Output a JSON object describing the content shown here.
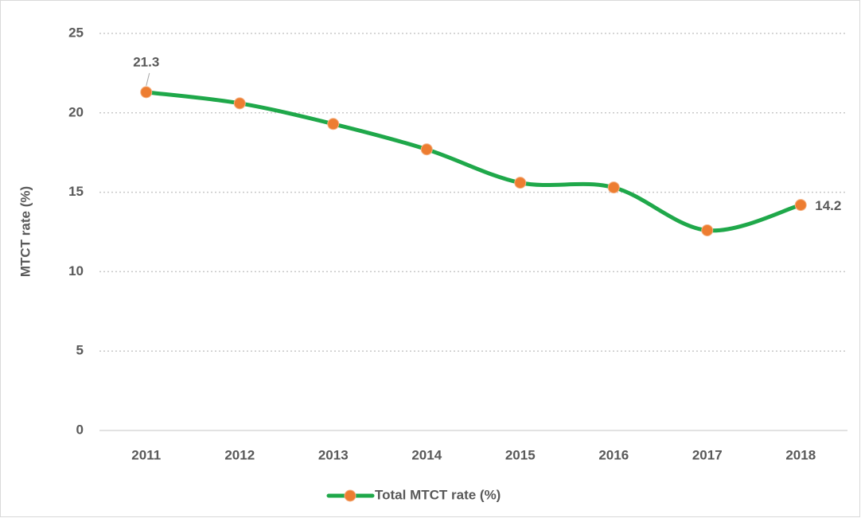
{
  "chart_data": {
    "type": "line",
    "y_axis_label": "MTCT rate (%)",
    "categories": [
      "2011",
      "2012",
      "2013",
      "2014",
      "2015",
      "2016",
      "2017",
      "2018"
    ],
    "series": [
      {
        "name": "Total MTCT rate (%)",
        "color": "#1fa84a",
        "marker_color": "#ed7d31",
        "values": [
          21.3,
          20.6,
          19.3,
          17.7,
          15.6,
          15.3,
          12.6,
          14.2
        ],
        "value_labels": [
          "21.3",
          null,
          null,
          null,
          null,
          null,
          null,
          "14.2"
        ]
      }
    ],
    "ylim": [
      0,
      25
    ],
    "yticks": [
      0,
      5,
      10,
      15,
      20,
      25
    ],
    "grid": true,
    "smooth": true,
    "legend": "bottom"
  }
}
